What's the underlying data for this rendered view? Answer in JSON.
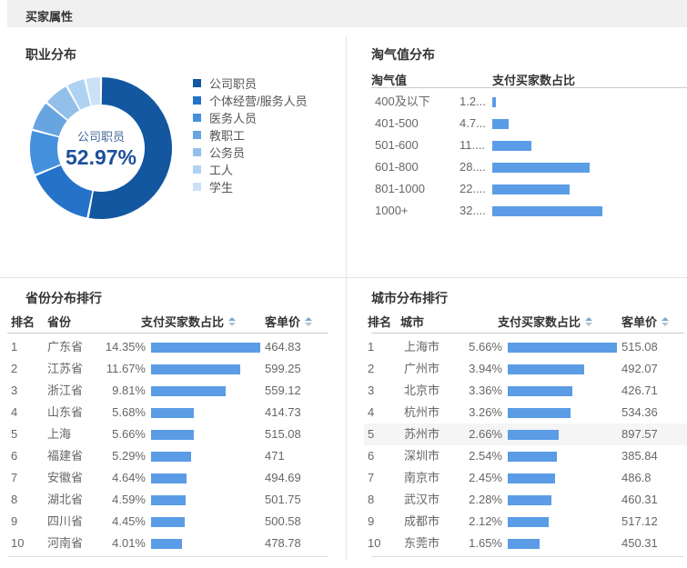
{
  "header": {
    "title": "买家属性"
  },
  "colors": {
    "bar_blue": "#5b9ce6",
    "header_bar_bg": "#f0f0f0",
    "divider": "#e3e3e3",
    "highlight_row": "#f5f5f5",
    "center_value_blue": "#1c4f9c"
  },
  "occupation": {
    "title": "职业分布",
    "center_label": "公司职员",
    "center_value": "52.97%"
  },
  "taoqi": {
    "title": "淘气值分布",
    "col_range": "淘气值",
    "col_share": "支付买家数占比"
  },
  "province": {
    "title": "省份分布排行",
    "col_rank": "排名",
    "col_name": "省份",
    "col_share": "支付买家数占比",
    "col_price": "客单价"
  },
  "city": {
    "title": "城市分布排行",
    "col_rank": "排名",
    "col_name": "城市",
    "col_share": "支付买家数占比",
    "col_price": "客单价"
  },
  "chart_data": [
    {
      "type": "pie",
      "donut": true,
      "title": "职业分布",
      "legend_position": "right",
      "labels": [
        "公司职员",
        "个体经营/服务人员",
        "医务人员",
        "教职工",
        "公务员",
        "工人",
        "学生"
      ],
      "values": [
        52.97,
        15.8,
        10.4,
        6.9,
        5.9,
        4.4,
        3.63
      ],
      "colors": [
        "#1257a0",
        "#2473c8",
        "#4590dc",
        "#68a5e0",
        "#92c0ea",
        "#aed2f2",
        "#cbe1f6"
      ],
      "center_label": "公司职员",
      "center_value": "52.97%"
    },
    {
      "type": "bar",
      "orientation": "horizontal",
      "title": "淘气值分布",
      "xlabel": "支付买家数占比",
      "ylabel": "淘气值",
      "categories": [
        "400及以下",
        "401-500",
        "501-600",
        "601-800",
        "801-1000",
        "1000+"
      ],
      "display_values": [
        "1.2...",
        "4.7...",
        "11....",
        "28....",
        "22....",
        "32...."
      ],
      "values": [
        1.2,
        4.7,
        11.5,
        28.6,
        22.7,
        32.4
      ],
      "unit": "%",
      "bar_color": "#5b9ce6"
    },
    {
      "type": "table",
      "title": "省份分布排行",
      "columns": [
        "排名",
        "省份",
        "支付买家数占比",
        "客单价"
      ],
      "rows": [
        {
          "rank": 1,
          "name": "广东省",
          "share": "14.35%",
          "share_value": 14.35,
          "price": "464.83"
        },
        {
          "rank": 2,
          "name": "江苏省",
          "share": "11.67%",
          "share_value": 11.67,
          "price": "599.25"
        },
        {
          "rank": 3,
          "name": "浙江省",
          "share": "9.81%",
          "share_value": 9.81,
          "price": "559.12"
        },
        {
          "rank": 4,
          "name": "山东省",
          "share": "5.68%",
          "share_value": 5.68,
          "price": "414.73"
        },
        {
          "rank": 5,
          "name": "上海",
          "share": "5.66%",
          "share_value": 5.66,
          "price": "515.08"
        },
        {
          "rank": 6,
          "name": "福建省",
          "share": "5.29%",
          "share_value": 5.29,
          "price": "471"
        },
        {
          "rank": 7,
          "name": "安徽省",
          "share": "4.64%",
          "share_value": 4.64,
          "price": "494.69"
        },
        {
          "rank": 8,
          "name": "湖北省",
          "share": "4.59%",
          "share_value": 4.59,
          "price": "501.75"
        },
        {
          "rank": 9,
          "name": "四川省",
          "share": "4.45%",
          "share_value": 4.45,
          "price": "500.58"
        },
        {
          "rank": 10,
          "name": "河南省",
          "share": "4.01%",
          "share_value": 4.01,
          "price": "478.78"
        }
      ]
    },
    {
      "type": "table",
      "title": "城市分布排行",
      "columns": [
        "排名",
        "城市",
        "支付买家数占比",
        "客单价"
      ],
      "highlighted_row_rank": 5,
      "rows": [
        {
          "rank": 1,
          "name": "上海市",
          "share": "5.66%",
          "share_value": 5.66,
          "price": "515.08"
        },
        {
          "rank": 2,
          "name": "广州市",
          "share": "3.94%",
          "share_value": 3.94,
          "price": "492.07"
        },
        {
          "rank": 3,
          "name": "北京市",
          "share": "3.36%",
          "share_value": 3.36,
          "price": "426.71"
        },
        {
          "rank": 4,
          "name": "杭州市",
          "share": "3.26%",
          "share_value": 3.26,
          "price": "534.36"
        },
        {
          "rank": 5,
          "name": "苏州市",
          "share": "2.66%",
          "share_value": 2.66,
          "price": "897.57"
        },
        {
          "rank": 6,
          "name": "深圳市",
          "share": "2.54%",
          "share_value": 2.54,
          "price": "385.84"
        },
        {
          "rank": 7,
          "name": "南京市",
          "share": "2.45%",
          "share_value": 2.45,
          "price": "486.8"
        },
        {
          "rank": 8,
          "name": "武汉市",
          "share": "2.28%",
          "share_value": 2.28,
          "price": "460.31"
        },
        {
          "rank": 9,
          "name": "成都市",
          "share": "2.12%",
          "share_value": 2.12,
          "price": "517.12"
        },
        {
          "rank": 10,
          "name": "东莞市",
          "share": "1.65%",
          "share_value": 1.65,
          "price": "450.31"
        }
      ]
    }
  ]
}
